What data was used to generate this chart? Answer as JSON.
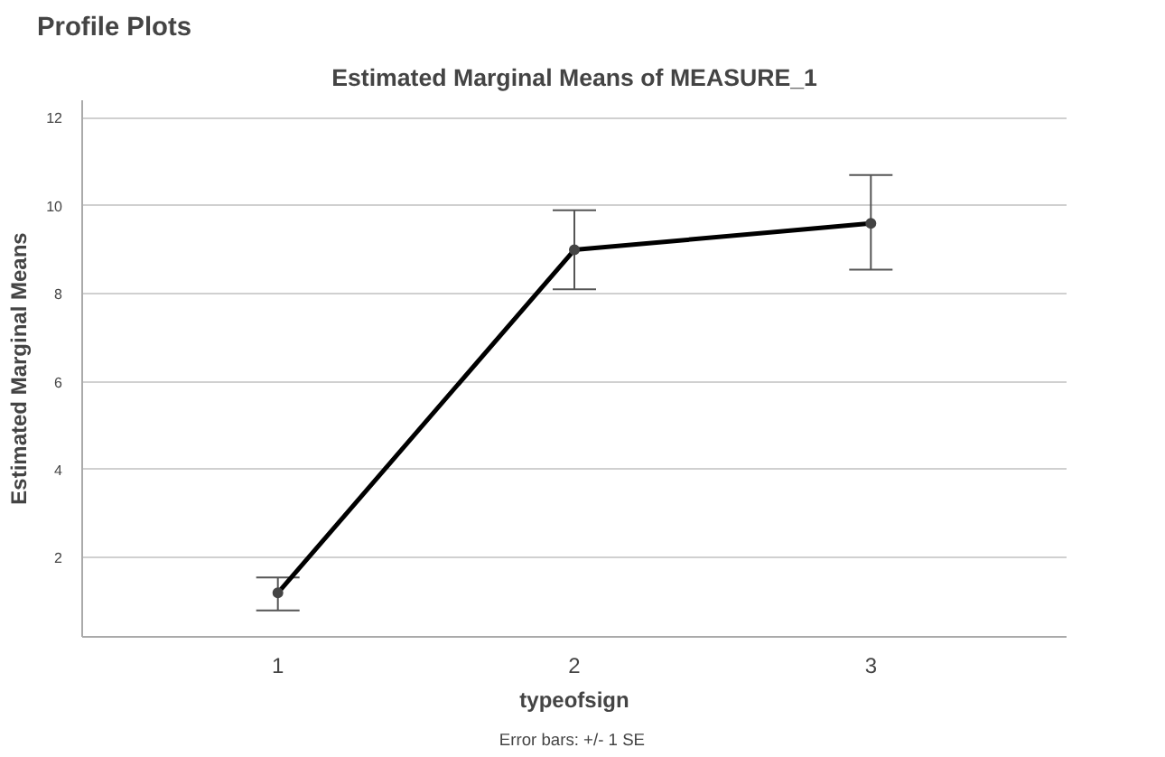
{
  "chart_data": {
    "type": "line",
    "title": "Profile Plots",
    "subtitle": "Estimated Marginal Means of MEASURE_1",
    "xlabel": "typeofsign",
    "ylabel": "Estimated Marginal Means",
    "annotations": [
      "Error bars:  +/- 1 SE"
    ],
    "x": [
      1,
      2,
      3
    ],
    "series": [
      {
        "color": "#000000",
        "values": [
          1.2,
          9.0,
          9.6
        ],
        "errors": [
          [
            0.8,
            1.55
          ],
          [
            8.1,
            9.9
          ],
          [
            8.55,
            10.7
          ]
        ]
      }
    ],
    "xlim": [
      0.34,
      3.66
    ],
    "xticks": [
      1,
      2,
      3
    ],
    "ylim": [
      0.2,
      12.4
    ],
    "yticks": [
      2,
      4,
      6,
      8,
      10,
      12
    ],
    "grid": "y",
    "marker": "circle",
    "line_style": "solid"
  }
}
